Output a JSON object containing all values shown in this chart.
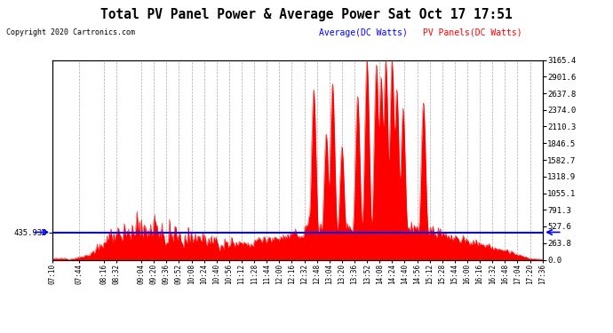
{
  "title": "Total PV Panel Power & Average Power Sat Oct 17 17:51",
  "copyright": "Copyright 2020 Cartronics.com",
  "legend_average": "Average(DC Watts)",
  "legend_pv": "PV Panels(DC Watts)",
  "average_value": 435.93,
  "y_right_ticks": [
    0.0,
    263.8,
    527.6,
    791.3,
    1055.1,
    1318.9,
    1582.7,
    1846.5,
    2110.3,
    2374.0,
    2637.8,
    2901.6,
    3165.4
  ],
  "y_max": 3165.4,
  "y_min": 0.0,
  "bg_color": "#ffffff",
  "grid_color": "#aaaaaa",
  "pv_color": "#ff0000",
  "avg_color": "#0000ff",
  "title_color": "#000000",
  "copyright_color": "#000000",
  "legend_avg_color": "#0000ff",
  "legend_pv_color": "#ff0000",
  "x_tick_labels": [
    "07:10",
    "07:44",
    "08:16",
    "08:32",
    "09:04",
    "09:20",
    "09:36",
    "09:52",
    "10:08",
    "10:24",
    "10:40",
    "10:56",
    "11:12",
    "11:28",
    "11:44",
    "12:00",
    "12:16",
    "12:32",
    "12:48",
    "13:04",
    "13:20",
    "13:36",
    "13:52",
    "14:08",
    "14:24",
    "14:40",
    "14:56",
    "15:12",
    "15:28",
    "15:44",
    "16:00",
    "16:16",
    "16:32",
    "16:48",
    "17:04",
    "17:20",
    "17:36"
  ]
}
